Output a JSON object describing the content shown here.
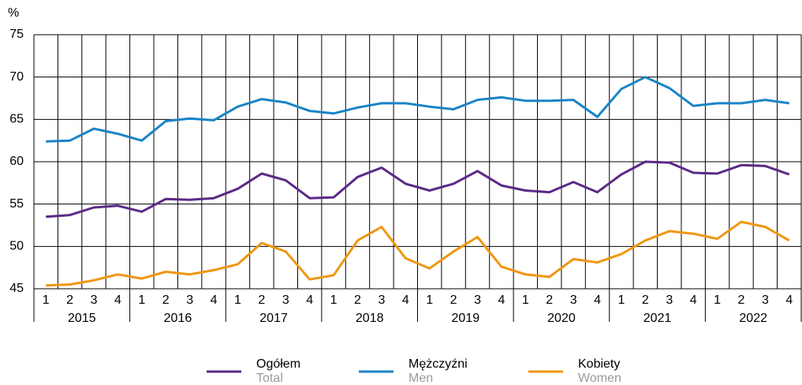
{
  "chart_data": {
    "type": "line",
    "y_unit": "%",
    "categories": [
      "1",
      "2",
      "3",
      "4",
      "1",
      "2",
      "3",
      "4",
      "1",
      "2",
      "3",
      "4",
      "1",
      "2",
      "3",
      "4",
      "1",
      "2",
      "3",
      "4",
      "1",
      "2",
      "3",
      "4",
      "1",
      "2",
      "3",
      "4",
      "1",
      "2",
      "3",
      "4"
    ],
    "groups": [
      "2015",
      "2016",
      "2017",
      "2018",
      "2019",
      "2020",
      "2021",
      "2022"
    ],
    "ylim": [
      45,
      75
    ],
    "yticks": [
      45,
      50,
      55,
      60,
      65,
      70,
      75
    ],
    "grid": true,
    "legend": "bottom",
    "series": [
      {
        "name": "Ogółem",
        "name_en": "Total",
        "color": "#5b2a86",
        "values": [
          53.5,
          53.7,
          54.6,
          54.8,
          54.1,
          55.6,
          55.5,
          55.7,
          56.8,
          58.6,
          57.8,
          55.7,
          55.8,
          58.2,
          59.3,
          57.4,
          56.6,
          57.4,
          58.9,
          57.2,
          56.6,
          56.4,
          57.6,
          56.4,
          58.5,
          60.0,
          59.9,
          58.7,
          58.6,
          59.6,
          59.5,
          58.5
        ]
      },
      {
        "name": "Mężczyźni",
        "name_en": "Men",
        "color": "#1a84c6",
        "values": [
          62.4,
          62.5,
          63.9,
          63.3,
          62.5,
          64.8,
          65.1,
          64.9,
          66.5,
          67.4,
          67.0,
          66.0,
          65.7,
          66.4,
          66.9,
          66.9,
          66.5,
          66.2,
          67.3,
          67.6,
          67.2,
          67.2,
          67.3,
          65.3,
          68.6,
          70.0,
          68.7,
          66.6,
          66.9,
          66.9,
          67.3,
          66.9
        ]
      },
      {
        "name": "Kobiety",
        "name_en": "Women",
        "color": "#f0960f",
        "values": [
          45.4,
          45.5,
          46.0,
          46.7,
          46.2,
          47.0,
          46.7,
          47.2,
          47.9,
          50.4,
          49.4,
          46.1,
          46.6,
          50.7,
          52.3,
          48.6,
          47.4,
          49.4,
          51.1,
          47.6,
          46.7,
          46.4,
          48.5,
          48.1,
          49.1,
          50.7,
          51.8,
          51.5,
          50.9,
          52.9,
          52.3,
          50.7
        ]
      }
    ]
  }
}
